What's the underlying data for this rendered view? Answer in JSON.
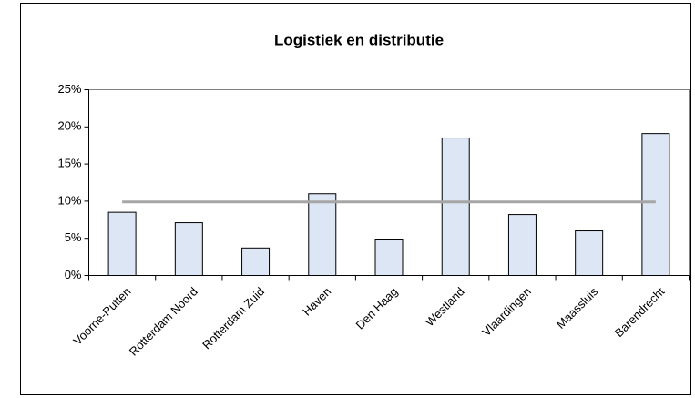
{
  "chart_data": {
    "type": "bar",
    "title": "Logistiek en distributie",
    "categories": [
      "Voorne-Putten",
      "Rotterdam Noord",
      "Rotterdam Zuid",
      "Haven",
      "Den Haag",
      "Westland",
      "Vlaardingen",
      "Maassluis",
      "Barendrecht"
    ],
    "series": [
      {
        "type": "bar",
        "color": "#dce6f4",
        "values": [
          8.5,
          7.1,
          3.7,
          11.0,
          4.9,
          18.5,
          8.2,
          6.0,
          19.1
        ]
      },
      {
        "type": "line",
        "color": "#a6a6a6",
        "values": [
          9.9,
          9.9,
          9.9,
          9.9,
          9.9,
          9.9,
          9.9,
          9.9,
          9.9
        ]
      }
    ],
    "ylim": [
      0,
      25
    ],
    "yticks": [
      {
        "value": 0,
        "label": "0%"
      },
      {
        "value": 5,
        "label": "5%"
      },
      {
        "value": 10,
        "label": "10%"
      },
      {
        "value": 15,
        "label": "15%"
      },
      {
        "value": 20,
        "label": "20%"
      },
      {
        "value": 25,
        "label": "25%"
      }
    ],
    "grid": false
  }
}
